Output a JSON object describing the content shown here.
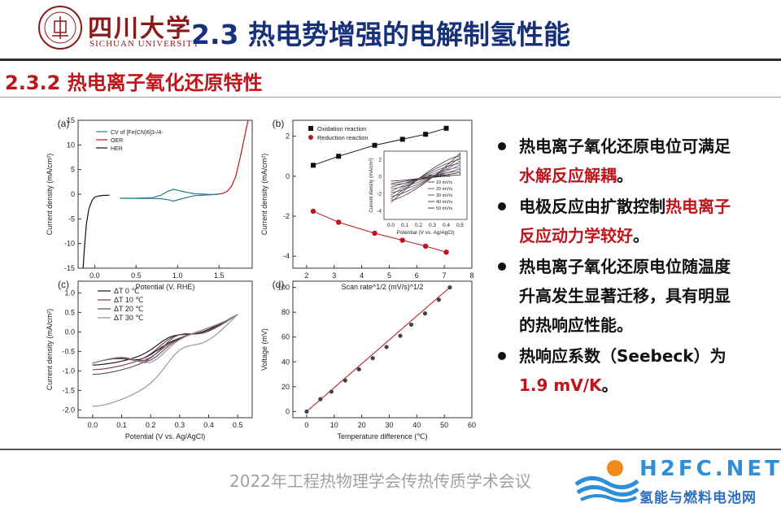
{
  "header": {
    "logo_cn": "四川大学",
    "logo_en": "SICHUAN UNIVERSITY",
    "seal_text": "四川大學 1896",
    "title": "2.3 热电势增强的电解制氢性能"
  },
  "subtitle": "2.3.2 热电离子氧化还原特性",
  "bullets": [
    {
      "parts": [
        "热电离子氧化还原电位可满足",
        "水解反应解耦",
        "。"
      ]
    },
    {
      "parts": [
        "电极反应由扩散控制",
        "热电离子反应动力学较好",
        "。"
      ]
    },
    {
      "parts": [
        "热电离子氧化还原电位随温度升高发生显著迁移，具有明显的热响应性能。",
        "",
        ""
      ]
    },
    {
      "parts": [
        "热响应系数（Seebeck）为",
        "1.9 mV/K",
        "。"
      ]
    }
  ],
  "footer": {
    "conference": "2022年工程热物理学会传热传质学术会议",
    "watermark_en": "H2FC.NET",
    "watermark_cn": "氢能与燃料电池网"
  },
  "colors": {
    "title": "#16307a",
    "accent_red": "#c0141c"
  },
  "chart_data": [
    {
      "panel": "(a)",
      "type": "line",
      "xlabel": "Potential (V. RHE)",
      "ylabel": "Current density (mA/cm²)",
      "xlim": [
        -0.2,
        1.9
      ],
      "ylim": [
        -15,
        15
      ],
      "xticks": [
        "0.0",
        "0.5",
        "1.0",
        "1.5"
      ],
      "yticks": [
        "15",
        "10",
        "5",
        "0",
        "-5",
        "-10",
        "-15"
      ],
      "legend": [
        "CV of [Fe(CN)6]3-/4-",
        "OER",
        "HER"
      ],
      "series": [
        {
          "name": "HER",
          "x": [
            -0.14,
            -0.12,
            -0.1,
            -0.07,
            -0.03,
            0.0,
            0.05,
            0.1,
            0.18
          ],
          "y": [
            -15,
            -10,
            -6,
            -3,
            -1.2,
            -0.6,
            -0.35,
            -0.25,
            -0.2
          ]
        },
        {
          "name": "OER",
          "x": [
            1.45,
            1.5,
            1.55,
            1.6,
            1.65,
            1.7,
            1.75,
            1.8,
            1.85
          ],
          "y": [
            0.0,
            0.05,
            0.2,
            0.6,
            1.6,
            3.5,
            7,
            11,
            15
          ]
        },
        {
          "name": "CV of [Fe(CN)6]3-/4-",
          "x": [
            0.3,
            0.5,
            0.7,
            0.8,
            0.88,
            0.95,
            1.05,
            1.2,
            1.4,
            1.5,
            1.4,
            1.2,
            1.05,
            0.95,
            0.88,
            0.8,
            0.7,
            0.5,
            0.3
          ],
          "y": [
            -0.8,
            -0.8,
            -0.7,
            -0.2,
            0.6,
            1.0,
            0.6,
            0.1,
            -0.05,
            0.0,
            -0.1,
            -0.3,
            -0.9,
            -1.4,
            -1.1,
            -0.9,
            -0.85,
            -0.85,
            -0.8
          ]
        }
      ]
    },
    {
      "panel": "(b)",
      "type": "scatter",
      "xlabel": "Scan rate^1/2 (mV/s)^1/2",
      "ylabel": "Current density (mA/cm²)",
      "xlim": [
        1.5,
        8
      ],
      "ylim": [
        -4.6,
        2.8
      ],
      "xticks": [
        "2",
        "3",
        "4",
        "5",
        "6",
        "7",
        "8"
      ],
      "yticks": [
        "2",
        "0",
        "-2",
        "-4"
      ],
      "legend": [
        "Oxidation reaction",
        "Reduction reaction"
      ],
      "series": [
        {
          "name": "Oxidation reaction",
          "x": [
            2.24,
            3.16,
            4.47,
            5.48,
            6.32,
            7.07
          ],
          "y": [
            0.55,
            1.0,
            1.55,
            1.85,
            2.1,
            2.4
          ]
        },
        {
          "name": "Reduction reaction",
          "x": [
            2.24,
            3.16,
            4.47,
            5.48,
            6.32,
            7.07
          ],
          "y": [
            -1.75,
            -2.3,
            -2.85,
            -3.2,
            -3.5,
            -3.8
          ]
        }
      ],
      "inset": {
        "xlabel": "Potential (V vs. Ag/AgCl)",
        "ylabel": "Current density (mA/cm²)",
        "xticks": [
          "0.0",
          "0.1",
          "0.2",
          "0.3",
          "0.4",
          "0.5"
        ],
        "yticks": [
          "2",
          "0",
          "-2",
          "-4"
        ],
        "legend": [
          "5 mV/s",
          "10 mV/s",
          "20 mV/s",
          "30 mV/s",
          "40 mV/s",
          "50 mV/s"
        ]
      }
    },
    {
      "panel": "(c)",
      "type": "line",
      "xlabel": "Potential (V vs. Ag/AgCl)",
      "ylabel": "Current density (mA/cm²)",
      "xlim": [
        -0.05,
        0.55
      ],
      "ylim": [
        -2.2,
        1.3
      ],
      "xticks": [
        "0.0",
        "0.1",
        "0.2",
        "0.3",
        "0.4",
        "0.5"
      ],
      "yticks": [
        "1.0",
        "0.5",
        "0.0",
        "-0.5",
        "-1.0",
        "-1.5",
        "-2.0"
      ],
      "legend": [
        "ΔT 0 ℃",
        "ΔT 10 ℃",
        "ΔT 20 ℃",
        "ΔT 30 ℃"
      ],
      "series": [
        {
          "name": "ΔT 0 ℃",
          "amp": 0.7,
          "shift": 0.0
        },
        {
          "name": "ΔT 10 ℃",
          "amp": 0.85,
          "shift": 0.01
        },
        {
          "name": "ΔT 20 ℃",
          "amp": 1.0,
          "shift": 0.02
        },
        {
          "name": "ΔT 30 ℃",
          "amp": 1.15,
          "shift": 0.03
        }
      ]
    },
    {
      "panel": "(d)",
      "type": "scatter",
      "xlabel": "Temperature difference (℃)",
      "ylabel": "Voltage (mV)",
      "xlim": [
        -5,
        60
      ],
      "ylim": [
        -5,
        105
      ],
      "xticks": [
        "0",
        "10",
        "20",
        "30",
        "40",
        "50",
        "60"
      ],
      "yticks": [
        "0",
        "20",
        "40",
        "60",
        "80",
        "100"
      ],
      "x": [
        0,
        5,
        9,
        14,
        19,
        24,
        29,
        34,
        38,
        43,
        48,
        52
      ],
      "y": [
        0,
        10,
        16,
        25,
        34,
        43,
        52,
        61,
        70,
        79,
        90,
        100
      ]
    }
  ]
}
